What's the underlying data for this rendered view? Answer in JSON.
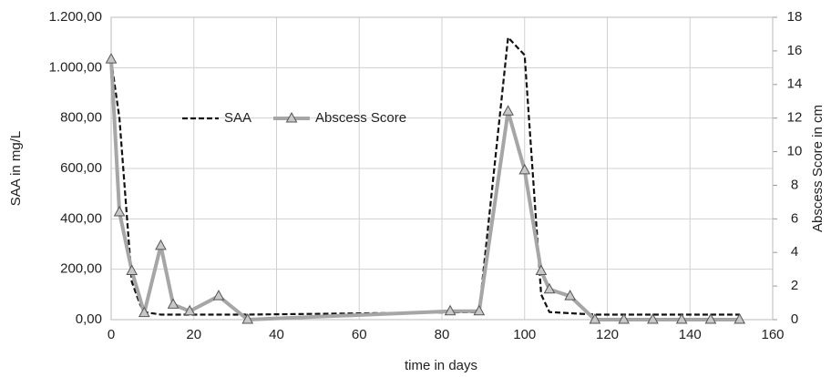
{
  "chart_data": {
    "type": "line",
    "x_label": "time in days",
    "y_label": "SAA in mg/L",
    "y2_label": "Abscess Score in cm",
    "xlim": [
      0,
      160
    ],
    "xticks": [
      0,
      20,
      40,
      60,
      80,
      100,
      120,
      140,
      160
    ],
    "ylim": [
      0,
      1200
    ],
    "yticks": [
      {
        "value": 0,
        "label": "0,00"
      },
      {
        "value": 200,
        "label": "200,00"
      },
      {
        "value": 400,
        "label": "400,00"
      },
      {
        "value": 600,
        "label": "600,00"
      },
      {
        "value": 800,
        "label": "800,00"
      },
      {
        "value": 1000,
        "label": "1.000,00"
      },
      {
        "value": 1200,
        "label": "1.200,00"
      }
    ],
    "y2lim": [
      0,
      18
    ],
    "y2ticks": [
      0,
      2,
      4,
      6,
      8,
      10,
      12,
      14,
      16,
      18
    ],
    "grid": true,
    "legend": "top",
    "series": [
      {
        "name": "SAA",
        "color": "#111111",
        "dash": true,
        "x": [
          0,
          2,
          5,
          7,
          8,
          12,
          33,
          89,
          96,
          100,
          104,
          106,
          117,
          152
        ],
        "values": [
          1030,
          800,
          150,
          60,
          30,
          20,
          20,
          30,
          1120,
          1050,
          100,
          30,
          20,
          20
        ]
      },
      {
        "name": "Abscess Score",
        "color": "#a6a6a6",
        "axis": "y2",
        "marker": "triangle",
        "x": [
          0,
          2,
          5,
          8,
          12,
          15,
          19,
          26,
          33,
          82,
          89,
          96,
          100,
          104,
          106,
          111,
          117,
          124,
          131,
          138,
          145,
          152
        ],
        "values": [
          15.5,
          6.4,
          2.9,
          0.4,
          4.4,
          0.9,
          0.5,
          1.4,
          0,
          0.5,
          0.5,
          12.4,
          8.9,
          2.9,
          1.8,
          1.4,
          0,
          0,
          0,
          0,
          0,
          0
        ]
      }
    ]
  }
}
